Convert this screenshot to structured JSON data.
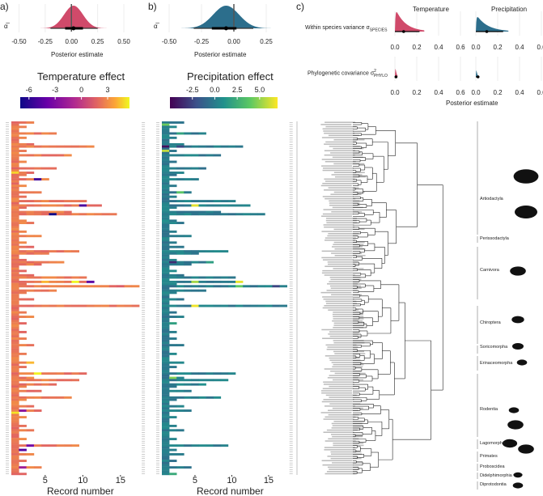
{
  "colors": {
    "temperature": "#d04a6a",
    "precipitation": "#2c6e8c"
  },
  "chart_data": [
    {
      "type": "area",
      "panel": "a)",
      "ylabel": "α̅",
      "xlabel": "Posterior estimate",
      "xticks": [
        "-0.50",
        "-0.25",
        "0.00",
        "0.25",
        "0.50"
      ],
      "xlim": [
        -0.55,
        0.6
      ],
      "mean": 0.02,
      "sd": 0.09,
      "interval_inner": [
        -0.06,
        0.11
      ],
      "interval_outer": [
        -0.2,
        0.25
      ]
    },
    {
      "type": "area",
      "panel": "b)",
      "ylabel": "α̅",
      "xlabel": "Posterior estimate",
      "xticks": [
        "-0.50",
        "-0.25",
        "0.00",
        "0.25"
      ],
      "xlim": [
        -0.55,
        0.35
      ],
      "mean": -0.06,
      "sd": 0.1,
      "interval_inner": [
        -0.17,
        0.02
      ],
      "interval_outer": [
        -0.31,
        0.15
      ]
    },
    {
      "type": "area",
      "panel": "c)",
      "xlabel": "Posterior estimate",
      "facets": [
        "Temperature",
        "Precipitation"
      ],
      "rows": [
        {
          "label": "Within species variance σ",
          "sub": "SPECIES",
          "sup": "",
          "temperature_mean": 0.08,
          "precipitation_mean": 0.1
        },
        {
          "label": "Phylogenetic covariance σ",
          "sub": "PHYLO",
          "sup": "2",
          "temperature_mean": 0.01,
          "precipitation_mean": 0.02
        }
      ],
      "xticks": [
        "0.0",
        "0.2",
        "0.4",
        "0.6"
      ],
      "xlim": [
        0,
        0.6
      ]
    },
    {
      "type": "heatmap",
      "title": "Temperature effect",
      "legend_ticks": [
        "-6",
        "-3",
        "0",
        "3"
      ],
      "range": [
        -7,
        5.5
      ],
      "xlabel": "Record number",
      "xticks": [
        "5",
        "10",
        "15"
      ]
    },
    {
      "type": "heatmap",
      "title": "Precipitation effect",
      "legend_ticks": [
        "-2.5",
        "0.0",
        "2.5",
        "5.0"
      ],
      "range": [
        -5,
        7
      ],
      "xlabel": "Record number",
      "xticks": [
        "5",
        "10",
        "15"
      ]
    }
  ],
  "records_per_species": [
    3,
    1,
    2,
    1,
    1,
    6,
    1,
    2,
    1,
    1,
    3,
    11,
    1,
    2,
    1,
    8,
    1,
    1,
    2,
    1,
    1,
    6,
    1,
    3,
    2,
    1,
    5,
    1,
    1,
    2,
    1,
    1,
    4,
    1,
    2,
    1,
    10,
    1,
    12,
    2,
    1,
    8,
    14,
    1,
    1,
    2,
    3,
    1,
    1,
    1,
    2,
    1,
    4,
    1,
    1,
    2,
    1,
    3,
    1,
    9,
    5,
    1,
    1,
    2,
    7,
    4,
    1,
    1,
    2,
    1,
    3,
    10,
    1,
    11,
    2,
    17,
    1,
    6,
    2,
    1,
    1,
    3,
    1,
    1,
    17,
    1,
    1,
    2,
    1,
    3,
    1,
    1,
    2,
    1,
    1,
    1,
    2,
    1,
    1,
    2,
    1,
    1,
    3,
    1,
    1,
    1,
    2,
    1,
    1,
    1,
    3,
    1,
    2,
    1,
    1,
    10,
    1,
    3,
    9,
    1,
    6,
    2,
    1,
    4,
    1,
    1,
    8,
    2,
    1,
    1,
    3,
    1,
    4,
    1,
    1,
    2,
    1,
    1,
    1,
    2,
    1,
    3,
    1,
    1,
    1,
    2,
    1,
    1,
    9,
    1,
    2,
    1,
    3,
    1,
    1,
    2,
    1,
    1,
    4,
    1,
    1,
    2
  ],
  "orders": [
    "Artiodactyla",
    "Perissodactyla",
    "Carnivora",
    "Chiroptera",
    "Soricomorpha",
    "Erinaceomorpha",
    "Rodentia",
    "Lagomorpha",
    "Primates",
    "Proboscidea",
    "Didelphimorphia",
    "Diprotodontia"
  ]
}
